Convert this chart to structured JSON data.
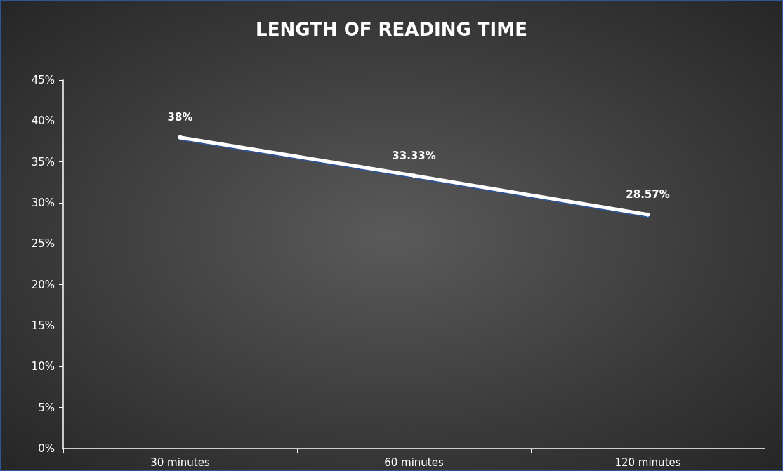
{
  "chart_data": {
    "type": "line",
    "title": "LENGTH OF READING TIME",
    "categories": [
      "30 minutes",
      "60 minutes",
      "120 minutes"
    ],
    "values": [
      38,
      33.33,
      28.57
    ],
    "value_labels": [
      "38%",
      "33.33%",
      "28.57%"
    ],
    "color": "#ffffff",
    "ylim": [
      0,
      45
    ],
    "yticks": [
      {
        "value": 0,
        "label": "0%"
      },
      {
        "value": 5,
        "label": "5%"
      },
      {
        "value": 10,
        "label": "10%"
      },
      {
        "value": 15,
        "label": "15%"
      },
      {
        "value": 20,
        "label": "20%"
      },
      {
        "value": 25,
        "label": "25%"
      },
      {
        "value": 30,
        "label": "30%"
      },
      {
        "value": 35,
        "label": "35%"
      },
      {
        "value": 40,
        "label": "40%"
      },
      {
        "value": 45,
        "label": "45%"
      }
    ],
    "grid": false,
    "marker": "circle",
    "line_style": "solid"
  }
}
